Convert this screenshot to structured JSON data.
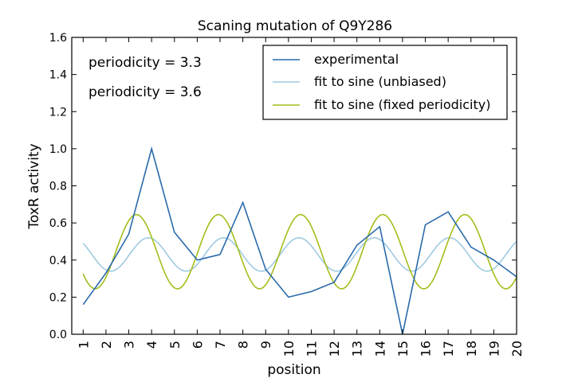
{
  "chart_data": {
    "type": "line",
    "title": "Scaning mutation of Q9Y286",
    "xlabel": "position",
    "ylabel": "ToxR activity",
    "xlim": [
      0.5,
      20
    ],
    "ylim": [
      0.0,
      1.6
    ],
    "xticks": [
      1,
      2,
      3,
      4,
      5,
      6,
      7,
      8,
      9,
      10,
      11,
      12,
      13,
      14,
      15,
      16,
      17,
      18,
      19,
      20
    ],
    "yticks": [
      0.0,
      0.2,
      0.4,
      0.6,
      0.8,
      1.0,
      1.2,
      1.4,
      1.6
    ],
    "grid": false,
    "legend_placement": "top-right",
    "x": [
      1,
      2,
      3,
      4,
      5,
      6,
      7,
      8,
      9,
      10,
      11,
      12,
      13,
      14,
      15,
      16,
      17,
      18,
      19,
      20
    ],
    "series": [
      {
        "name": "experimental",
        "color": "#2a6aab",
        "values": [
          0.16,
          0.33,
          0.54,
          1.0,
          0.55,
          0.4,
          0.43,
          0.71,
          0.35,
          0.2,
          0.23,
          0.28,
          0.48,
          0.58,
          0.0,
          0.59,
          0.66,
          0.47,
          0.4,
          0.31
        ]
      },
      {
        "name": "fit to sine (unbiased)",
        "color": "#9ecae1",
        "sine": {
          "offset": 0.43,
          "amplitude": 0.09,
          "period": 3.3,
          "value_at_x1": 0.49,
          "direction_at_x1": "down"
        },
        "samples_per_unit": 20
      },
      {
        "name": "fit to sine (fixed periodicity)",
        "color": "#a5bd1b",
        "sine": {
          "offset": 0.445,
          "amplitude": 0.2,
          "period": 3.6,
          "value_at_x1": 0.325,
          "direction_at_x1": "down"
        },
        "samples_per_unit": 20
      }
    ],
    "annotations": [
      {
        "text": "periodicity = 3.3",
        "color": "#9ecae1"
      },
      {
        "text": "periodicity = 3.6",
        "color": "#a5bd1b"
      }
    ]
  }
}
